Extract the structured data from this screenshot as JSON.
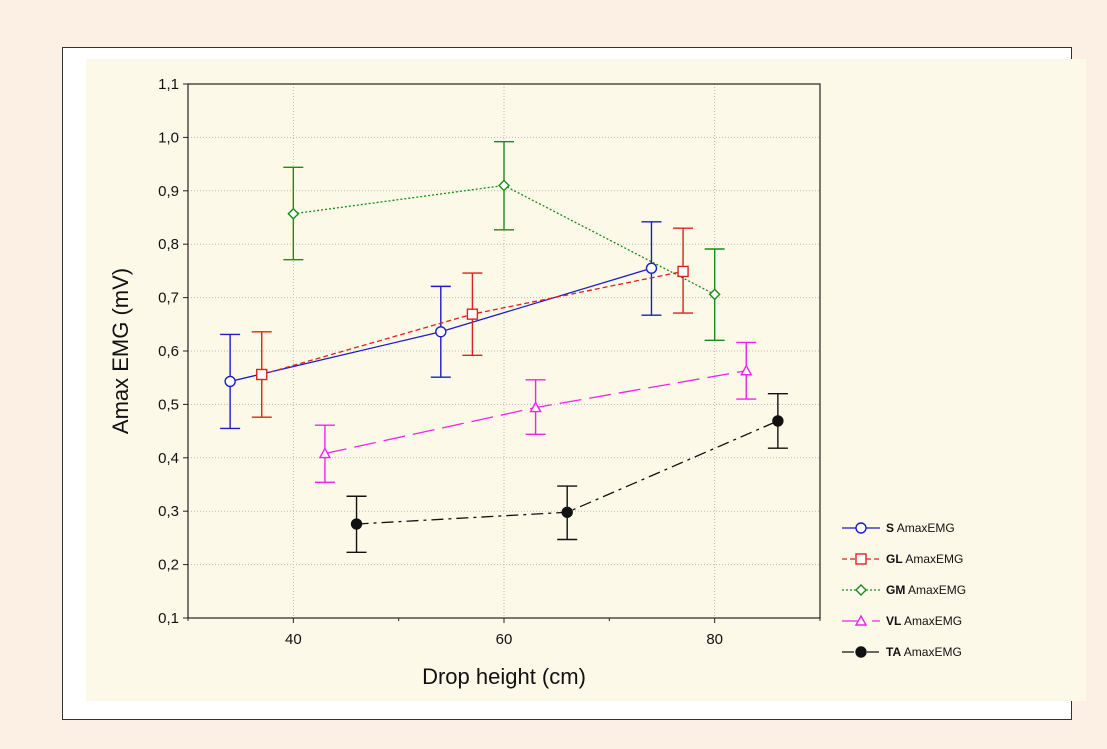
{
  "chart_data": {
    "type": "line",
    "xlabel": "Drop height (cm)",
    "ylabel": "Amax EMG (mV)",
    "xlim": [
      30,
      90
    ],
    "ylim": [
      0.1,
      1.1
    ],
    "xticks": [
      40,
      60,
      80
    ],
    "xtick_labels": [
      "40",
      "60",
      "80"
    ],
    "yticks": [
      0.1,
      0.2,
      0.3,
      0.4,
      0.5,
      0.6,
      0.7,
      0.8,
      0.9,
      1.0,
      1.1
    ],
    "ytick_labels": [
      "0,1",
      "0,2",
      "0,3",
      "0,4",
      "0,5",
      "0,6",
      "0,7",
      "0,8",
      "0,9",
      "1,0",
      "1,1"
    ],
    "grid": true,
    "legend_position": "right",
    "series": [
      {
        "name": "S",
        "suffix": "AmaxEMG",
        "color": "#1c1cc8",
        "marker": "circle-open",
        "dash": "",
        "x": [
          34,
          54,
          74
        ],
        "y": [
          0.543,
          0.636,
          0.755
        ],
        "lower": [
          0.455,
          0.551,
          0.667
        ],
        "upper": [
          0.631,
          0.721,
          0.842
        ]
      },
      {
        "name": "GL",
        "suffix": "AmaxEMG",
        "color": "#e02020",
        "marker": "square-open",
        "dash": "5,3",
        "x": [
          37,
          57,
          77
        ],
        "y": [
          0.556,
          0.669,
          0.749
        ],
        "lower": [
          0.476,
          0.592,
          0.671
        ],
        "upper": [
          0.636,
          0.746,
          0.83
        ]
      },
      {
        "name": "GM",
        "suffix": "AmaxEMG",
        "color": "#1a8a1a",
        "marker": "diamond-open",
        "dash": "2,2",
        "x": [
          40,
          60,
          80
        ],
        "y": [
          0.857,
          0.91,
          0.706
        ],
        "lower": [
          0.771,
          0.827,
          0.62
        ],
        "upper": [
          0.944,
          0.992,
          0.791
        ]
      },
      {
        "name": "VL",
        "suffix": "AmaxEMG",
        "color": "#ee22ee",
        "marker": "triangle-open",
        "dash": "22,8",
        "x": [
          43,
          63,
          83
        ],
        "y": [
          0.408,
          0.494,
          0.563
        ],
        "lower": [
          0.354,
          0.444,
          0.51
        ],
        "upper": [
          0.461,
          0.546,
          0.616
        ]
      },
      {
        "name": "TA",
        "suffix": "AmaxEMG",
        "color": "#111111",
        "marker": "circle-filled",
        "dash": "12,5,3,5",
        "x": [
          46,
          66,
          86
        ],
        "y": [
          0.276,
          0.298,
          0.469
        ],
        "lower": [
          0.223,
          0.247,
          0.418
        ],
        "upper": [
          0.328,
          0.347,
          0.52
        ]
      }
    ]
  }
}
